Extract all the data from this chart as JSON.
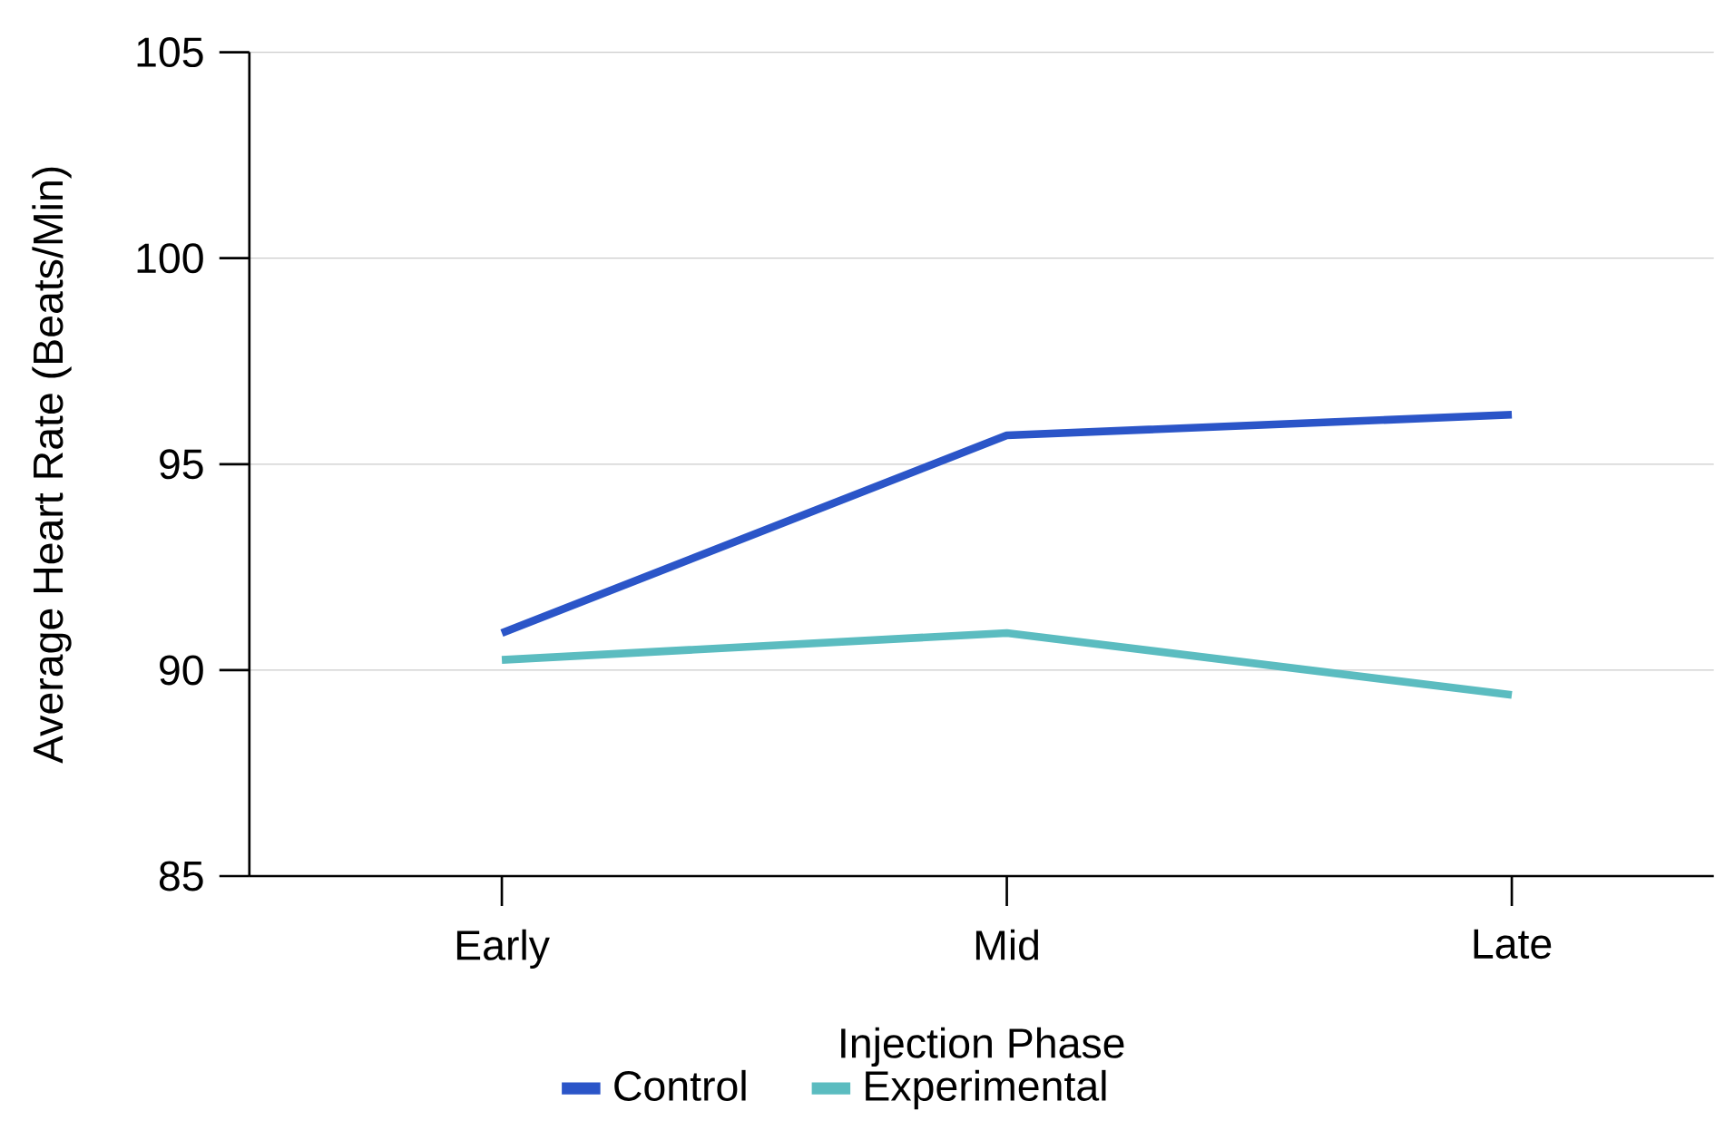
{
  "chart_data": {
    "type": "line",
    "xlabel": "Injection Phase",
    "ylabel": "Average Heart Rate (Beats/Min)",
    "categories": [
      "Early",
      "Mid",
      "Late"
    ],
    "series": [
      {
        "name": "Control",
        "color": "#2b55c8",
        "values": [
          90.9,
          95.7,
          96.2
        ]
      },
      {
        "name": "Experimental",
        "color": "#5bbcc0",
        "values": [
          90.25,
          90.9,
          89.4
        ]
      }
    ],
    "ylim": [
      85,
      105
    ],
    "yticks": [
      85,
      90,
      95,
      100,
      105
    ],
    "grid": "y",
    "legend": "bottom",
    "marker": "none",
    "line_style": "solid"
  }
}
